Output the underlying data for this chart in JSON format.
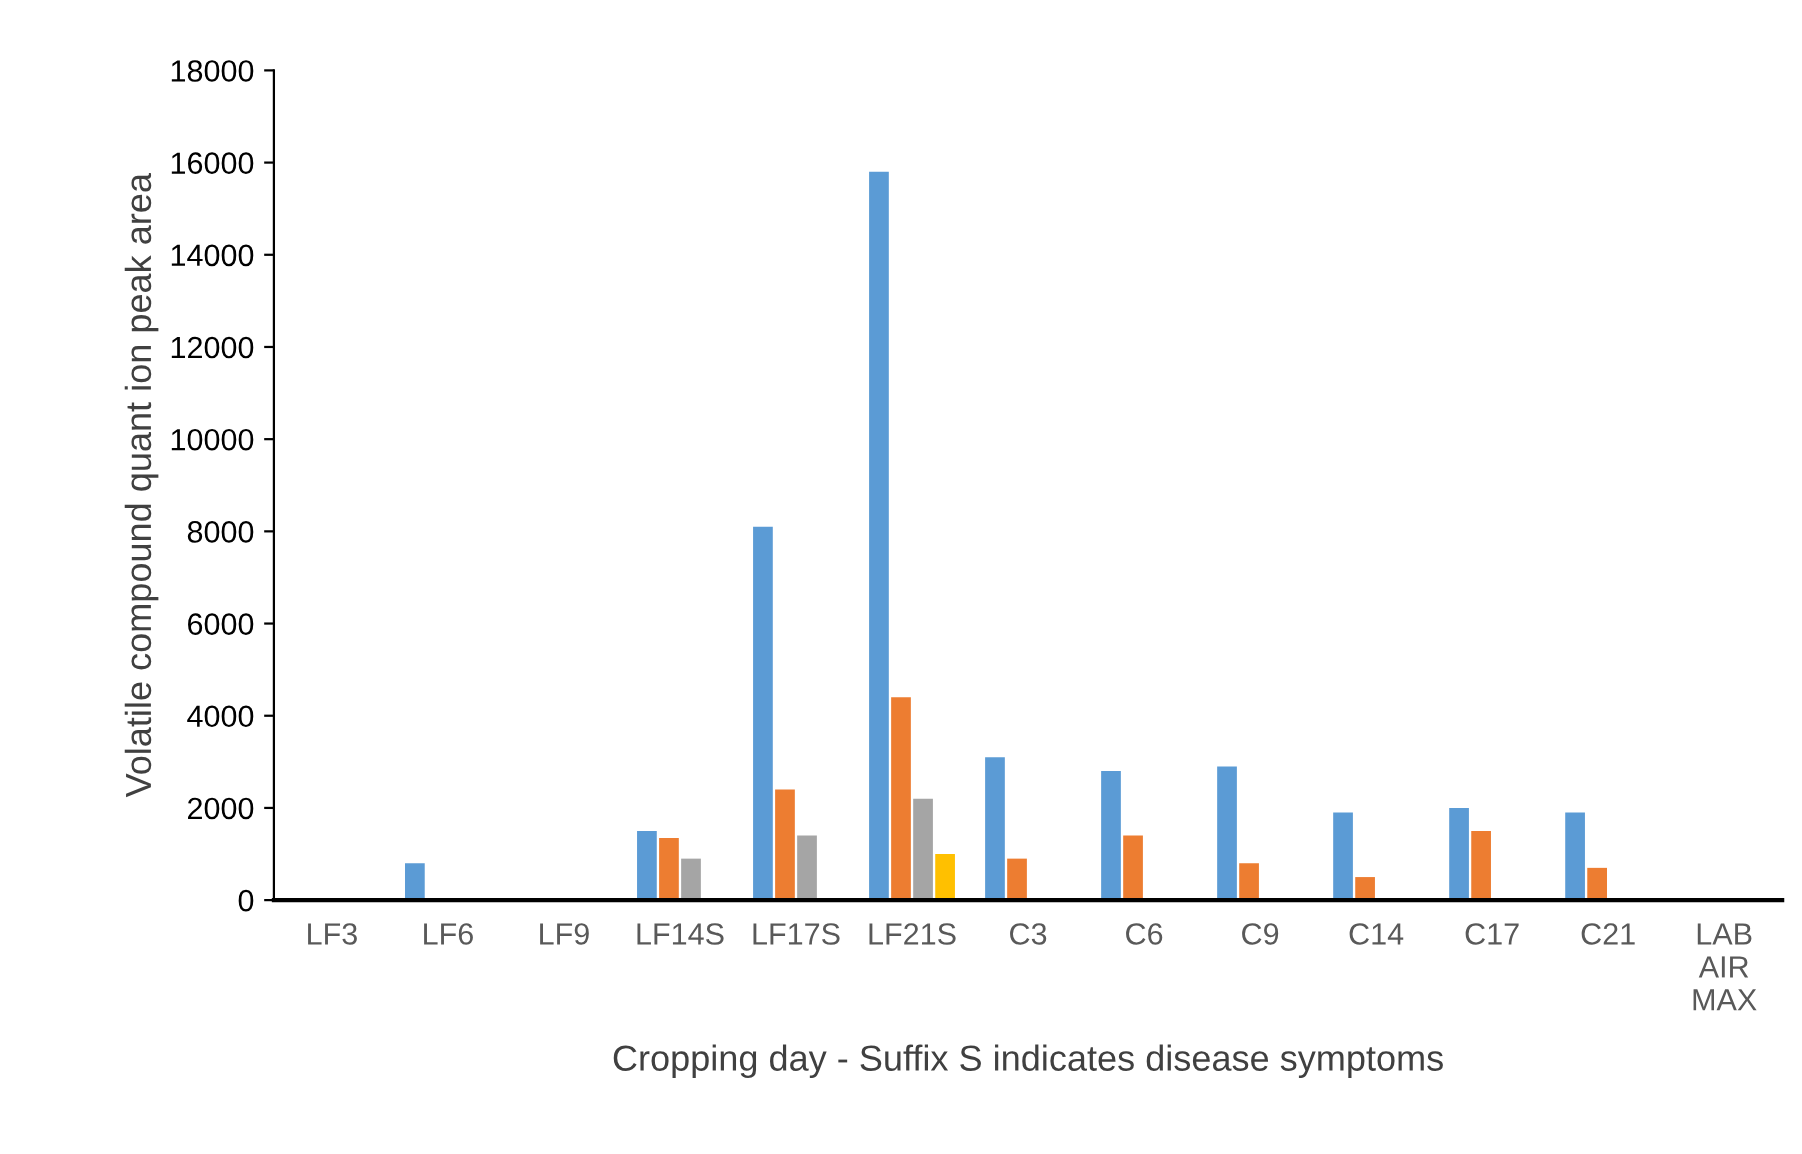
{
  "chart_data": {
    "type": "bar",
    "xlabel": "Cropping day - Suffix S indicates disease symptoms",
    "ylabel": "Volatile compound quant ion peak area",
    "categories": [
      "LF3",
      "LF6",
      "LF9",
      "LF14S",
      "LF17S",
      "LF21S",
      "C3",
      "C6",
      "C9",
      "C14",
      "C17",
      "C21",
      "LAB\nAIR\nMAX"
    ],
    "series": [
      {
        "color": "#5b9bd5",
        "values": [
          null,
          800,
          null,
          1500,
          8100,
          15800,
          3100,
          2800,
          2900,
          1900,
          2000,
          1900,
          null
        ]
      },
      {
        "color": "#ed7d31",
        "values": [
          null,
          null,
          null,
          1350,
          2400,
          4400,
          900,
          1400,
          800,
          500,
          1500,
          700,
          null
        ]
      },
      {
        "color": "#a5a5a5",
        "values": [
          null,
          null,
          null,
          900,
          1400,
          2200,
          null,
          null,
          null,
          null,
          null,
          null,
          null
        ]
      },
      {
        "color": "#ffc000",
        "values": [
          null,
          null,
          null,
          null,
          null,
          1000,
          null,
          null,
          null,
          null,
          null,
          null,
          null
        ]
      }
    ],
    "ylim": [
      0,
      18000
    ],
    "yticks": [
      0,
      2000,
      4000,
      6000,
      8000,
      10000,
      12000,
      14000,
      16000,
      18000
    ],
    "grid": false
  }
}
